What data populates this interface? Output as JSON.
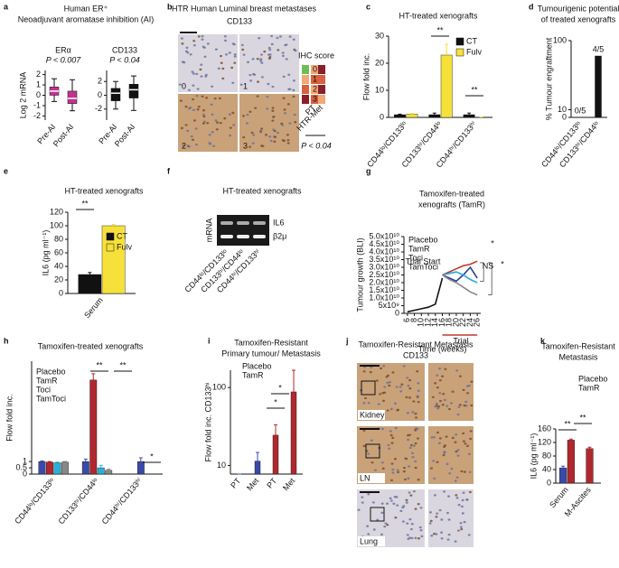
{
  "chart_data": [
    {
      "panel": "a",
      "type": "box",
      "title": "Human ER⁺",
      "subtitle": "Neoadjuvant aromatase inhibition (AI)",
      "y_label": "Log 2 mRNA",
      "label": "ERα",
      "p_value": "P < 0.007",
      "categories": [
        "Pre-AI",
        "Post-AI"
      ],
      "color": "#c2338f",
      "boxes": [
        {
          "whislo": -0.6,
          "q1": 0,
          "med": 0.4,
          "q3": 0.8,
          "whishi": 1.6
        },
        {
          "whislo": -1.5,
          "q1": -0.8,
          "med": -0.3,
          "q3": 0.4,
          "whishi": 1.5
        }
      ],
      "ylim": [
        -2.4,
        2.4
      ],
      "yticks": [
        -2,
        -1,
        0,
        1,
        2
      ]
    },
    {
      "type": "box",
      "label": "CD133",
      "p_value": "P < 0.04",
      "categories": [
        "Pre-AI",
        "Post-AI"
      ],
      "color": "#111111",
      "boxes": [
        {
          "whislo": -2,
          "q1": -0.8,
          "med": 0.3,
          "q3": 1,
          "whishi": 2
        },
        {
          "whislo": -2.2,
          "q1": -0.4,
          "med": 0.8,
          "q3": 1.6,
          "whishi": 2.8
        }
      ],
      "ylim": [
        -3.6,
        3.6
      ],
      "yticks": [
        -2,
        0,
        2
      ]
    },
    {
      "panel": "b",
      "type": "image",
      "title": "HTR Human Luminal breast metastases",
      "stain": "CD133",
      "tiles": [
        "0",
        "1",
        "2",
        "3"
      ],
      "legend_title": "IHC score",
      "legend": [
        "0",
        "1",
        "2",
        "3"
      ],
      "columns": [
        "PT",
        "HTR-Met"
      ],
      "p_value": "P < 0.04"
    },
    {
      "panel": "c",
      "type": "bar",
      "title": "HT-treated xenografts",
      "y_label": "Flow fold inc.",
      "categories": [
        "CD44ˡᵒ/CD133ˡᵒ",
        "CD133ʰⁱ/CD44ˡᵒ",
        "CD44ʰⁱ/CD133ʰⁱ"
      ],
      "category_colors": [
        "#5b7fd6",
        "#7a3aa8",
        "#8fc23f"
      ],
      "series": [
        {
          "name": "CT",
          "color": "#111111",
          "values": [
            1,
            1,
            1
          ],
          "errors": [
            0.2,
            0.6,
            0.6
          ]
        },
        {
          "name": "Fulv",
          "color": "#f5e13a",
          "values": [
            1.2,
            23,
            0.1
          ],
          "errors": [
            0.2,
            4,
            0.05
          ]
        }
      ],
      "ylim": [
        0,
        30
      ],
      "yticks": [
        0,
        10,
        20,
        30
      ],
      "legend_style": "swatch",
      "annotations": [
        "**",
        "**"
      ]
    },
    {
      "panel": "d",
      "type": "bar",
      "title": "Tumourigenic potential",
      "subtitle": "of treated xenografts",
      "y_label": "% Tumour engraftment",
      "categories": [
        "CD44ˡᵒ/CD133ˡᵒ",
        "CD133ʰⁱ/CD44ˡᵒ"
      ],
      "category_colors": [
        "#5b7fd6",
        "#7a3aa8"
      ],
      "values": [
        0,
        80
      ],
      "value_labels": [
        "0/5",
        "4/5"
      ],
      "color": "#111111",
      "ylim": [
        0,
        100
      ],
      "yticks": [
        0,
        10,
        100
      ]
    },
    {
      "panel": "e",
      "type": "bar",
      "title": "HT-treated xenografts",
      "y_label": "IL6 (pg ml⁻¹)",
      "categories": [
        "Serum"
      ],
      "series": [
        {
          "name": "CT",
          "color": "#111111",
          "values": [
            28
          ],
          "errors": [
            3
          ]
        },
        {
          "name": "Fulv",
          "color": "#f5e13a",
          "values": [
            100
          ],
          "errors": [
            2
          ]
        }
      ],
      "ylim": [
        0,
        120
      ],
      "yticks": [
        0,
        20,
        40,
        60,
        80,
        100,
        120
      ],
      "legend_style": "swatch",
      "annotations": [
        "**"
      ]
    },
    {
      "panel": "f",
      "type": "image",
      "title": "HT-treated xenografts",
      "row_label": "mRNA",
      "bands": [
        "IL6",
        "β2μ"
      ],
      "categories": [
        "CD44ˡᵒ/CD133ˡᵒ",
        "CD133ʰⁱ/CD44ˡᵒ",
        "CD44ʰⁱ/CD133ʰⁱ"
      ],
      "category_colors": [
        "#5b7fd6",
        "#7a3aa8",
        "#8fc23f"
      ]
    },
    {
      "panel": "g",
      "type": "line",
      "title": "Tamoxifen-treated",
      "subtitle": "xenografts (TamR)",
      "y_label": "Tumour growth (BLI)",
      "x_label": "Time (weeks)",
      "x": [
        6,
        8,
        10,
        12,
        14,
        16,
        18,
        20,
        22,
        24,
        26
      ],
      "series": [
        {
          "color": "#111111",
          "values": [
            1000000000,
            2000000000,
            3000000000,
            4000000000,
            6000000000,
            23000000000,
            null,
            null,
            null,
            null,
            null
          ]
        },
        {
          "name": "Placebo",
          "color": "#2b3a9b",
          "values": [
            null,
            null,
            null,
            null,
            null,
            25000000000,
            23000000000,
            21000000000,
            25000000000,
            30000000000,
            23000000000
          ]
        },
        {
          "name": "TamR",
          "color": "#c0392b",
          "values": [
            null,
            null,
            null,
            null,
            null,
            25000000000,
            27000000000,
            29000000000,
            31000000000,
            32000000000,
            34000000000
          ]
        },
        {
          "name": "Toci",
          "color": "#22aadd",
          "values": [
            null,
            null,
            null,
            null,
            null,
            25000000000,
            26000000000,
            27000000000,
            25000000000,
            22000000000,
            20000000000
          ]
        },
        {
          "name": "TamToci",
          "color": "#888888",
          "values": [
            null,
            null,
            null,
            null,
            null,
            25000000000,
            22000000000,
            20000000000,
            17000000000,
            14000000000,
            12000000000
          ]
        }
      ],
      "xlim": [
        5,
        27
      ],
      "xticks": [
        6,
        8,
        10,
        12,
        14,
        16,
        18,
        20,
        22,
        24,
        26
      ],
      "ylim": [
        0,
        50000000000
      ],
      "yticks": [
        0,
        {
          "value": 5000000000,
          "label": "5x10⁹"
        },
        {
          "value": 10000000000,
          "label": "1.0x10¹⁰"
        },
        {
          "value": 15000000000,
          "label": "1.5x10¹⁰"
        },
        {
          "value": 20000000000,
          "label": "2.0x10¹⁰"
        },
        {
          "value": 25000000000,
          "label": "2.5x10¹⁰"
        },
        {
          "value": 30000000000,
          "label": "3.0x10¹⁰"
        },
        {
          "value": 35000000000,
          "label": "3.5x10¹⁰"
        },
        {
          "value": 40000000000,
          "label": "4.0x10¹⁰"
        },
        {
          "value": 45000000000,
          "label": "4.5x10¹⁰"
        },
        {
          "value": 50000000000,
          "label": "5.0x10¹⁰"
        }
      ],
      "legend_style": "text",
      "annotations": [
        "Trial Start",
        "Trial",
        "*",
        "NS",
        "*"
      ]
    },
    {
      "panel": "h",
      "type": "bar",
      "title": "Tamoxifen-treated xenografts",
      "y_label": "Flow fold inc.",
      "categories": [
        "CD44ˡᵒ/CD133ˡᵒ",
        "CD133ʰⁱ/CD44ˡᵒ",
        "CD44ʰⁱ/CD133ʰⁱ"
      ],
      "category_colors": [
        "#5b7fd6",
        "#7a3aa8",
        "#8fc23f"
      ],
      "series": [
        {
          "name": "Placebo",
          "color": "#3a4aa8",
          "values": [
            1,
            1,
            1
          ],
          "errors": [
            0.05,
            0.2,
            0.3
          ]
        },
        {
          "name": "TamR",
          "color": "#b0282d",
          "values": [
            0.95,
            7.5,
            null
          ],
          "errors": [
            0.05,
            0.5,
            null
          ]
        },
        {
          "name": "Toci",
          "color": "#2ab0d8",
          "values": [
            0.9,
            0.5,
            null
          ],
          "errors": [
            0.05,
            0.2,
            null
          ]
        },
        {
          "name": "TamToci",
          "color": "#888888",
          "values": [
            0.95,
            0.3,
            null
          ],
          "errors": [
            0.05,
            0.1,
            null
          ]
        }
      ],
      "ylim": [
        0,
        9
      ],
      "yticks": [
        0,
        0.5,
        1
      ],
      "legend_style": "text",
      "annotations": [
        "**",
        "**",
        "*"
      ]
    },
    {
      "panel": "i",
      "type": "bar",
      "title": "Tamoxifen-Resistant",
      "subtitle": "Primary tumour/ Metastasis",
      "y_label": "Flow fold inc. CD133ʰⁱ",
      "categories": [
        "PT",
        "Met",
        "PT",
        "Met"
      ],
      "series": [
        {
          "name": "Placebo",
          "color": "#3a4aa8",
          "values": [
            0,
            15,
            null,
            null
          ],
          "errors": [
            0,
            10,
            null,
            null
          ]
        },
        {
          "name": "TamR",
          "color": "#b0282d",
          "values": [
            null,
            null,
            45,
            95
          ],
          "errors": [
            null,
            null,
            12,
            25
          ]
        }
      ],
      "ylim": [
        0,
        120
      ],
      "yticks": [
        10,
        100
      ],
      "legend_style": "text",
      "annotations": [
        "*",
        "*"
      ]
    },
    {
      "panel": "j",
      "type": "image",
      "title": "Tamoxifen-Resistant Metastasis",
      "stain": "CD133",
      "tiles": [
        "Kidney",
        "LN",
        "Lung"
      ]
    },
    {
      "panel": "k",
      "type": "bar",
      "title": "Tamoxifen-Resistant",
      "subtitle": "Metastasis",
      "y_label": "IL6 (pg ml⁻¹)",
      "categories": [
        "Serum",
        "M-Ascites"
      ],
      "series": [
        {
          "name": "Placebo",
          "color": "#3a4aa8",
          "values": [
            45,
            null
          ],
          "errors": [
            5,
            null
          ]
        },
        {
          "name": "TamR",
          "color": "#b0282d",
          "values": [
            127,
            102
          ],
          "errors": [
            3,
            4
          ]
        }
      ],
      "ylim": [
        0,
        160
      ],
      "yticks": [
        0,
        40,
        80,
        120,
        160
      ],
      "legend_style": "text",
      "annotations": [
        "**",
        "**"
      ]
    }
  ]
}
